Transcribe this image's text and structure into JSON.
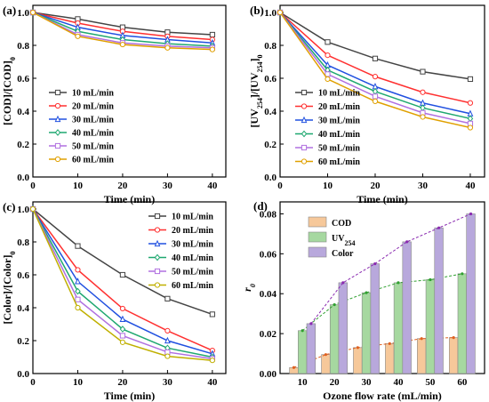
{
  "chart_data": [
    {
      "panel": "(a)",
      "type": "line",
      "xlabel": "Time (min)",
      "ylabel": "[COD]/[COD]0",
      "ylabel_main": "[COD]/[COD]",
      "ylabel_sub": "0",
      "x": [
        0,
        10,
        20,
        30,
        40
      ],
      "xlim": [
        0,
        43
      ],
      "ylim": [
        0.0,
        1.0
      ],
      "xticks": [
        0,
        10,
        20,
        30,
        40
      ],
      "yticks": [
        0.0,
        0.2,
        0.4,
        0.6,
        0.8,
        1.0
      ],
      "legend": "left",
      "series": [
        {
          "name": "10 mL/min",
          "color": "#444444",
          "values": [
            1.0,
            0.96,
            0.91,
            0.88,
            0.865
          ]
        },
        {
          "name": "20 mL/min",
          "color": "#ff3030",
          "values": [
            1.0,
            0.935,
            0.885,
            0.855,
            0.835
          ]
        },
        {
          "name": "30 mL/min",
          "color": "#2050e0",
          "values": [
            1.0,
            0.91,
            0.86,
            0.835,
            0.815
          ]
        },
        {
          "name": "40 mL/min",
          "color": "#1fa870",
          "values": [
            1.0,
            0.885,
            0.835,
            0.81,
            0.795
          ]
        },
        {
          "name": "50 mL/min",
          "color": "#b070e0",
          "values": [
            1.0,
            0.865,
            0.815,
            0.795,
            0.785
          ]
        },
        {
          "name": "60 mL/min",
          "color": "#e0a000",
          "values": [
            1.0,
            0.855,
            0.805,
            0.785,
            0.775
          ]
        }
      ]
    },
    {
      "panel": "(b)",
      "type": "line",
      "xlabel": "Time (min)",
      "ylabel": "[UV254]/[UV254]0",
      "ylabel_main": "[UV",
      "ylabel_parts": [
        "[UV",
        "254",
        "]/[UV",
        "254",
        "]",
        "0"
      ],
      "x": [
        0,
        10,
        20,
        30,
        40
      ],
      "xlim": [
        0,
        43
      ],
      "ylim": [
        0.0,
        1.0
      ],
      "xticks": [
        0,
        10,
        20,
        30,
        40
      ],
      "yticks": [
        0.0,
        0.2,
        0.4,
        0.6,
        0.8,
        1.0
      ],
      "legend": "bottom-left",
      "series": [
        {
          "name": "10 mL/min",
          "color": "#444444",
          "values": [
            1.0,
            0.82,
            0.72,
            0.64,
            0.595
          ]
        },
        {
          "name": "20 mL/min",
          "color": "#ff3030",
          "values": [
            1.0,
            0.74,
            0.61,
            0.515,
            0.45
          ]
        },
        {
          "name": "30 mL/min",
          "color": "#2050e0",
          "values": [
            1.0,
            0.68,
            0.55,
            0.45,
            0.385
          ]
        },
        {
          "name": "40 mL/min",
          "color": "#1fa870",
          "values": [
            1.0,
            0.65,
            0.52,
            0.42,
            0.355
          ]
        },
        {
          "name": "50 mL/min",
          "color": "#b070e0",
          "values": [
            1.0,
            0.625,
            0.49,
            0.39,
            0.325
          ]
        },
        {
          "name": "60 mL/min",
          "color": "#e0a000",
          "values": [
            1.0,
            0.595,
            0.46,
            0.365,
            0.3
          ]
        }
      ]
    },
    {
      "panel": "(c)",
      "type": "line",
      "xlabel": "Time (min)",
      "ylabel": "[Color]/[Color]0",
      "ylabel_main": "[Color]/[Color]",
      "ylabel_sub": "0",
      "x": [
        0,
        10,
        20,
        30,
        40
      ],
      "xlim": [
        0,
        43
      ],
      "ylim": [
        0.0,
        1.0
      ],
      "xticks": [
        0,
        10,
        20,
        30,
        40
      ],
      "yticks": [
        0.0,
        0.2,
        0.4,
        0.6,
        0.8,
        1.0
      ],
      "legend": "top-right",
      "series": [
        {
          "name": "10 mL/min",
          "color": "#444444",
          "values": [
            1.0,
            0.775,
            0.6,
            0.455,
            0.36
          ]
        },
        {
          "name": "20 mL/min",
          "color": "#ff3030",
          "values": [
            1.0,
            0.63,
            0.395,
            0.26,
            0.14
          ]
        },
        {
          "name": "30 mL/min",
          "color": "#2050e0",
          "values": [
            1.0,
            0.56,
            0.33,
            0.2,
            0.12
          ]
        },
        {
          "name": "40 mL/min",
          "color": "#1fa870",
          "values": [
            1.0,
            0.5,
            0.27,
            0.155,
            0.1
          ]
        },
        {
          "name": "50 mL/min",
          "color": "#b070e0",
          "values": [
            1.0,
            0.45,
            0.23,
            0.13,
            0.09
          ]
        },
        {
          "name": "60 mL/min",
          "color": "#c0b000",
          "values": [
            1.0,
            0.4,
            0.19,
            0.105,
            0.08
          ]
        }
      ]
    },
    {
      "panel": "(d)",
      "type": "bar",
      "xlabel": "Ozone flow rate (mL/min)",
      "ylabel": "r0",
      "ylabel_main": "r",
      "ylabel_sub": "0",
      "categories": [
        "10",
        "20",
        "30",
        "40",
        "50",
        "60"
      ],
      "ylim": [
        0.0,
        0.086
      ],
      "yticks": [
        0.0,
        0.02,
        0.04,
        0.06,
        0.08
      ],
      "ytick_labels": [
        "0.00",
        "0.02",
        "0.04",
        "0.06",
        "0.08"
      ],
      "legend": "top-left",
      "series": [
        {
          "name": "COD",
          "color": "#f6c89a",
          "line_color": "#e06020",
          "values": [
            0.003,
            0.0095,
            0.013,
            0.015,
            0.0175,
            0.018
          ]
        },
        {
          "name": "UV254",
          "name_main": "UV",
          "name_sub": "254",
          "color": "#a6d8a0",
          "line_color": "#30a030",
          "values": [
            0.0215,
            0.0345,
            0.0405,
            0.0455,
            0.047,
            0.05
          ]
        },
        {
          "name": "Color",
          "color": "#b8a8dc",
          "line_color": "#8a2ab0",
          "values": [
            0.025,
            0.0455,
            0.055,
            0.066,
            0.073,
            0.08
          ]
        }
      ]
    }
  ]
}
